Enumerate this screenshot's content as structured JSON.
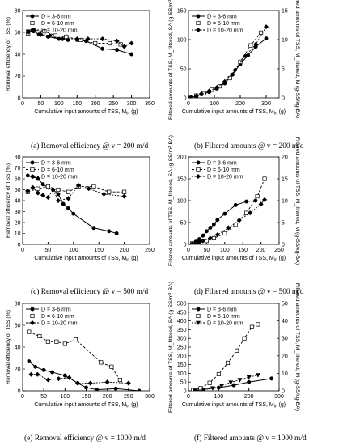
{
  "figure": {
    "captions": [
      "(a) Removal efficiency @ v = 200 m/d",
      "(b) Filtered amounts @ v = 200 m/d",
      "(c) Removal efficiency @ v = 500 m/d",
      "(d) Filtered amounts @ v = 500 m/d",
      "(e) Removal efficiency @ v = 1000 m/d",
      "(f) Filtered amounts @ v = 1000 m/d"
    ]
  },
  "legend_labels": [
    "D = 3-6 mm",
    "D = 6-10 mm",
    "D = 10-20 mm"
  ],
  "chart_data": [
    {
      "id": "a",
      "type": "line",
      "title": "",
      "xlabel": "Cumulative input amounts of TSS, M_in (g)",
      "ylabel": "Removal efficiency of TSS (%)",
      "xlim": [
        0,
        350
      ],
      "xticks": [
        0,
        50,
        100,
        150,
        200,
        250,
        300,
        350
      ],
      "ylim": [
        0,
        80
      ],
      "yticks": [
        0,
        20,
        40,
        60,
        80
      ],
      "legend": "top-left",
      "series": [
        {
          "name": "D = 3-6 mm",
          "x": [
            15,
            30,
            45,
            70,
            100,
            125,
            150,
            175,
            220,
            260,
            300
          ],
          "y": [
            61,
            61,
            58,
            56,
            54,
            53,
            53,
            52,
            45,
            44,
            40
          ]
        },
        {
          "name": "D = 6-10 mm",
          "x": [
            15,
            30,
            60,
            90,
            120,
            160,
            200,
            240,
            270
          ],
          "y": [
            59,
            62,
            61,
            57,
            56,
            53,
            50,
            50,
            49
          ]
        },
        {
          "name": "D = 10-20 mm",
          "x": [
            15,
            30,
            50,
            75,
            110,
            150,
            180,
            220,
            260,
            280,
            300
          ],
          "y": [
            60,
            62,
            58,
            57,
            54,
            54,
            54,
            54,
            52,
            47,
            50
          ]
        }
      ]
    },
    {
      "id": "b",
      "type": "line",
      "title": "",
      "xlabel": "Cumulative input amounts of TSS, M_in (g)",
      "ylabel": "Filtered amounts of TSS, M_filtered, SA (g-SS/m²-BA)",
      "y2label": "Filtered amounts of TSS, M_filtered, M (g-SS/kg-BA)",
      "xlim": [
        0,
        350
      ],
      "xticks": [
        0,
        100,
        200,
        300
      ],
      "ylim": [
        0,
        150
      ],
      "yticks": [
        0,
        50,
        100,
        150
      ],
      "y2lim": [
        0,
        15
      ],
      "y2ticks": [
        0,
        5,
        10,
        15
      ],
      "legend": "top-left",
      "series": [
        {
          "name": "D = 3-6 mm",
          "x": [
            10,
            30,
            50,
            80,
            110,
            140,
            170,
            200,
            230,
            260,
            300
          ],
          "y": [
            1,
            3,
            6,
            10,
            16,
            25,
            40,
            58,
            73,
            88,
            102
          ]
        },
        {
          "name": "D = 6-10 mm",
          "x": [
            10,
            30,
            60,
            90,
            120,
            160,
            200,
            240,
            280
          ],
          "y": [
            2,
            4,
            8,
            14,
            20,
            34,
            62,
            90,
            112
          ]
        },
        {
          "name": "D = 10-20 mm",
          "x": [
            10,
            30,
            50,
            80,
            110,
            140,
            180,
            220,
            260,
            300
          ],
          "y": [
            1,
            3,
            7,
            12,
            18,
            28,
            48,
            72,
            92,
            122
          ]
        }
      ]
    },
    {
      "id": "c",
      "type": "line",
      "title": "",
      "xlabel": "Cumulative input amounts of TSS, M_in (g)",
      "ylabel": "Removal efficiency of TSS (%)",
      "xlim": [
        0,
        250
      ],
      "xticks": [
        0,
        50,
        100,
        150,
        200,
        250
      ],
      "ylim": [
        0,
        80
      ],
      "yticks": [
        0,
        10,
        20,
        30,
        40,
        50,
        60,
        70,
        80
      ],
      "legend": "top-left",
      "series": [
        {
          "name": "D = 3-6 mm",
          "x": [
            10,
            20,
            30,
            40,
            50,
            60,
            70,
            80,
            90,
            100,
            140,
            170,
            185
          ],
          "y": [
            63,
            62,
            60,
            55,
            52,
            50,
            46,
            37,
            33,
            28,
            15,
            12,
            10
          ]
        },
        {
          "name": "D = 6-10 mm",
          "x": [
            10,
            30,
            50,
            70,
            90,
            110,
            140,
            170,
            200
          ],
          "y": [
            48,
            51,
            53,
            50,
            48,
            53,
            53,
            48,
            48
          ]
        },
        {
          "name": "D = 10-20 mm",
          "x": [
            10,
            20,
            30,
            40,
            50,
            60,
            70,
            90,
            110,
            130,
            160,
            200
          ],
          "y": [
            49,
            52,
            47,
            45,
            43,
            50,
            40,
            42,
            54,
            51,
            46,
            44
          ]
        }
      ]
    },
    {
      "id": "d",
      "type": "line",
      "title": "",
      "xlabel": "Cumulative input amounts of TSS, M_in (g)",
      "ylabel": "Filtered amounts of TSS, M_filtered, SA (g-SS/m²-BA)",
      "y2label": "Filtered amounts of TSS, M_filtered, M (g-SS/kg-BA)",
      "xlim": [
        0,
        250
      ],
      "xticks": [
        0,
        50,
        100,
        150,
        200,
        250
      ],
      "ylim": [
        0,
        200
      ],
      "yticks": [
        0,
        50,
        100,
        150,
        200
      ],
      "y2lim": [
        0,
        20
      ],
      "y2ticks": [
        0,
        5,
        10,
        15,
        20
      ],
      "legend": "top-left",
      "series": [
        {
          "name": "D = 3-6 mm",
          "x": [
            10,
            20,
            30,
            40,
            50,
            60,
            70,
            80,
            100,
            130,
            160,
            185
          ],
          "y": [
            2,
            6,
            12,
            20,
            30,
            38,
            46,
            56,
            70,
            90,
            98,
            100
          ]
        },
        {
          "name": "D = 6-10 mm",
          "x": [
            10,
            30,
            50,
            70,
            100,
            130,
            160,
            190,
            210
          ],
          "y": [
            2,
            4,
            8,
            14,
            25,
            45,
            72,
            110,
            150
          ]
        },
        {
          "name": "D = 10-20 mm",
          "x": [
            10,
            20,
            30,
            40,
            60,
            80,
            110,
            140,
            170,
            200,
            210
          ],
          "y": [
            1,
            3,
            5,
            8,
            14,
            22,
            38,
            55,
            72,
            92,
            102
          ]
        }
      ]
    },
    {
      "id": "e",
      "type": "line",
      "title": "",
      "xlabel": "Cumulative input amounts of TSS, M_in (g)",
      "ylabel": "Removal efficiency of TSS (%)",
      "xlim": [
        0,
        300
      ],
      "xticks": [
        0,
        50,
        100,
        150,
        200,
        250,
        300
      ],
      "ylim": [
        0,
        80
      ],
      "yticks": [
        0,
        20,
        40,
        60,
        80
      ],
      "legend": "top-left",
      "series": [
        {
          "name": "D = 3-6 mm",
          "x": [
            15,
            30,
            50,
            70,
            100,
            130,
            150,
            175,
            220,
            275
          ],
          "y": [
            27,
            22,
            19,
            17,
            14,
            7,
            3,
            1,
            2,
            0
          ]
        },
        {
          "name": "D = 6-10 mm",
          "x": [
            15,
            40,
            60,
            80,
            100,
            125,
            185,
            210,
            230
          ],
          "y": [
            54,
            50,
            45,
            45,
            43,
            47,
            26,
            22,
            10
          ]
        },
        {
          "name": "D = 10-20 mm",
          "x": [
            20,
            35,
            60,
            85,
            110,
            130,
            160,
            200,
            250
          ],
          "y": [
            15,
            15,
            10,
            11,
            12,
            7,
            7,
            8,
            7
          ]
        }
      ]
    },
    {
      "id": "f",
      "type": "line",
      "title": "",
      "xlabel": "Cumulative input amounts of TSS, M_in (g)",
      "ylabel": "Filtered amounts of TSS, M_filtered, SA (g-SS/m²-BA)",
      "y2label": "Filtered amounts of TSS, M_filtered, M (g-SS/kg-BA)",
      "xlim": [
        0,
        300
      ],
      "xticks": [
        0,
        100,
        200,
        300
      ],
      "ylim": [
        0,
        500
      ],
      "yticks": [
        0,
        50,
        100,
        150,
        200,
        250,
        300,
        350,
        400,
        450,
        500
      ],
      "y2lim": [
        0,
        50
      ],
      "y2ticks": [
        0,
        10,
        20,
        30,
        40,
        50
      ],
      "legend": "top-left",
      "series": [
        {
          "name": "D = 3-6 mm",
          "x": [
            15,
            50,
            100,
            150,
            200,
            275
          ],
          "y": [
            2,
            8,
            18,
            32,
            50,
            70
          ]
        },
        {
          "name": "D = 6-10 mm",
          "x": [
            15,
            40,
            70,
            100,
            130,
            160,
            185,
            210,
            230
          ],
          "y": [
            5,
            15,
            45,
            95,
            160,
            230,
            300,
            365,
            380
          ]
        },
        {
          "name": "D = 10-20 mm",
          "x": [
            20,
            50,
            80,
            110,
            140,
            170,
            200,
            230
          ],
          "y": [
            2,
            6,
            15,
            30,
            48,
            62,
            78,
            90
          ]
        }
      ]
    }
  ]
}
